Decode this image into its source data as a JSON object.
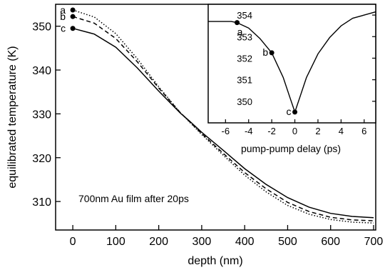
{
  "chart_data": [
    {
      "type": "line",
      "title": "",
      "xlabel": "depth (nm)",
      "ylabel": "equilibrated temperature (K)",
      "xlim": [
        -40,
        705
      ],
      "ylim": [
        303.5,
        355
      ],
      "xticks": [
        0,
        100,
        200,
        300,
        400,
        500,
        600,
        700
      ],
      "yticks": [
        310,
        320,
        330,
        340,
        350
      ],
      "annotation": "700nm Au film after 20ps",
      "series": [
        {
          "name": "a",
          "style": "dotted",
          "x": [
            0,
            50,
            100,
            150,
            200,
            250,
            270,
            300,
            350,
            400,
            450,
            500,
            550,
            600,
            650,
            700
          ],
          "y": [
            353.7,
            352.1,
            348.3,
            342.6,
            336.2,
            330.3,
            328.3,
            325.3,
            320.6,
            316.0,
            312.2,
            309.1,
            307.1,
            305.9,
            305.3,
            305.1
          ]
        },
        {
          "name": "b",
          "style": "dashed",
          "x": [
            0,
            50,
            100,
            150,
            200,
            250,
            270,
            300,
            350,
            400,
            450,
            500,
            550,
            600,
            650,
            700
          ],
          "y": [
            352.2,
            350.7,
            347.2,
            341.9,
            335.9,
            330.3,
            328.4,
            325.5,
            321.0,
            316.6,
            312.9,
            309.8,
            307.7,
            306.4,
            305.8,
            305.6
          ]
        },
        {
          "name": "c",
          "style": "solid",
          "x": [
            0,
            50,
            100,
            150,
            200,
            250,
            270,
            300,
            350,
            400,
            450,
            500,
            550,
            600,
            650,
            700
          ],
          "y": [
            349.5,
            348.2,
            345.2,
            340.5,
            335.2,
            330.2,
            328.5,
            325.8,
            321.7,
            317.5,
            313.9,
            310.9,
            308.7,
            307.3,
            306.6,
            306.3
          ]
        }
      ],
      "markers": [
        {
          "label": "a",
          "x": 0,
          "y": 353.7
        },
        {
          "label": "b",
          "x": 0,
          "y": 352.2
        },
        {
          "label": "c",
          "x": 0,
          "y": 349.5
        }
      ]
    },
    {
      "type": "line",
      "title": "",
      "xlabel": "pump-pump delay (ps)",
      "ylabel": "",
      "xlim": [
        -7.5,
        7
      ],
      "ylim": [
        349.0,
        354.5
      ],
      "xticks": [
        -6,
        -4,
        -2,
        0,
        2,
        4,
        6
      ],
      "yticks": [
        350,
        351,
        352,
        353,
        354
      ],
      "series": [
        {
          "name": "",
          "x": [
            -7.5,
            -5.5,
            -5.0,
            -4.0,
            -3.0,
            -2.0,
            -1.0,
            -0.5,
            0,
            0.5,
            1.0,
            2.0,
            3.0,
            4.0,
            5.0,
            6.0,
            7.0
          ],
          "y": [
            353.7,
            353.7,
            353.65,
            353.4,
            352.9,
            352.25,
            351.1,
            350.3,
            349.5,
            350.3,
            351.1,
            352.2,
            352.95,
            353.5,
            353.85,
            354.0,
            354.15
          ]
        }
      ],
      "markers": [
        {
          "label": "a",
          "x": -5.0,
          "y": 353.65
        },
        {
          "label": "b",
          "x": -2.0,
          "y": 352.25
        },
        {
          "label": "c",
          "x": 0.0,
          "y": 349.5
        }
      ]
    }
  ]
}
